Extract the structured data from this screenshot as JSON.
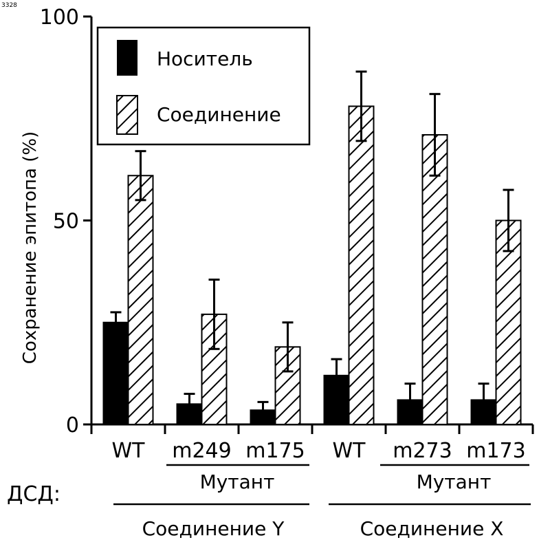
{
  "watermark": "3328",
  "chart_data": {
    "type": "bar",
    "ylabel": "Сохранение эпитопа (%)",
    "ylim": [
      0,
      100
    ],
    "yticks": [
      0,
      50,
      100
    ],
    "categories": [
      "WT",
      "m249",
      "m175",
      "WT",
      "m273",
      "m173"
    ],
    "series": [
      {
        "name": "Носитель",
        "fill": "solid",
        "color": "#000000",
        "values": [
          25,
          5,
          3.5,
          12,
          6,
          6
        ],
        "errors": [
          2.5,
          2.5,
          2,
          4,
          4,
          4
        ]
      },
      {
        "name": "Соединение",
        "fill": "hatched",
        "color": "#000000",
        "values": [
          61,
          27,
          19,
          78,
          71,
          50
        ],
        "errors": [
          6,
          8.5,
          6,
          8.5,
          10,
          7.5
        ]
      }
    ],
    "legend": {
      "position": "top-left",
      "items": [
        "Носитель",
        "Соединение"
      ]
    },
    "row_label": "ДСД:",
    "mutant_groups": [
      {
        "label": "Мутант",
        "categories": [
          "m249",
          "m175"
        ]
      },
      {
        "label": "Мутант",
        "categories": [
          "m273",
          "m173"
        ]
      }
    ],
    "compound_groups": [
      {
        "label": "Соединение Y",
        "categories": [
          "WT",
          "m249",
          "m175"
        ]
      },
      {
        "label": "Соединение X",
        "categories": [
          "WT",
          "m273",
          "m173"
        ]
      }
    ]
  }
}
